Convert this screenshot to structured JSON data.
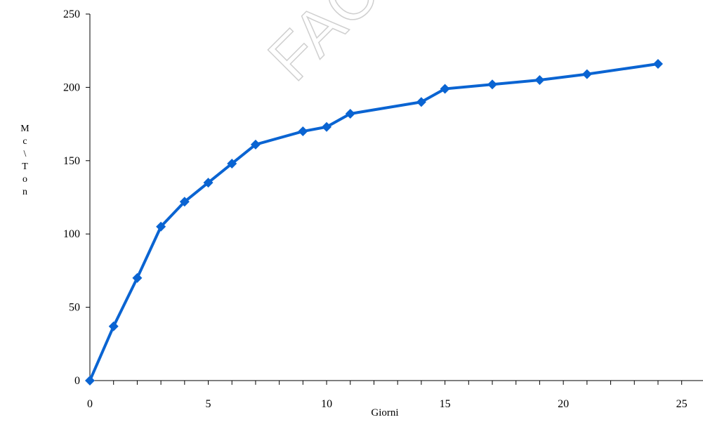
{
  "chart_data": {
    "type": "line",
    "x_label": "Giorni",
    "y_label": "Mc\\Ton",
    "watermark": "FAC-S",
    "x": [
      0,
      1,
      2,
      3,
      4,
      5,
      6,
      7,
      9,
      10,
      11,
      14,
      15,
      17,
      19,
      21,
      24
    ],
    "series": [
      {
        "color": "#0a64d2",
        "marker": "diamond",
        "values": [
          0,
          37,
          70,
          105,
          122,
          135,
          148,
          161,
          170,
          173,
          182,
          190,
          199,
          202,
          205,
          209,
          216
        ]
      }
    ],
    "xlim": [
      0,
      25.9
    ],
    "xticks": [
      0,
      5,
      10,
      15,
      20,
      25
    ],
    "x_minor_ticks": [
      1,
      2,
      3,
      4,
      6,
      7,
      8,
      9,
      11,
      12,
      13,
      14,
      16,
      17,
      18,
      19,
      21,
      22,
      23,
      24
    ],
    "ylim": [
      0,
      250
    ],
    "yticks": [
      0,
      50,
      100,
      150,
      200,
      250
    ]
  }
}
